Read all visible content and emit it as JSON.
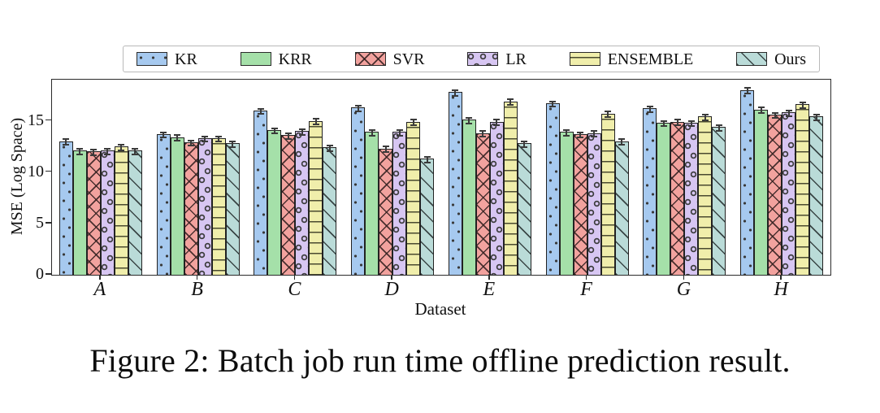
{
  "figure": {
    "caption": "Figure 2: Batch job run time offline prediction result."
  },
  "chart_data": {
    "type": "bar",
    "title": "",
    "xlabel": "Dataset",
    "ylabel": "MSE (Log Space)",
    "categories": [
      "A",
      "B",
      "C",
      "D",
      "E",
      "F",
      "G",
      "H"
    ],
    "category_label_style": "calligraphic-italic",
    "ylim": [
      0,
      19
    ],
    "yticks": [
      0,
      5,
      10,
      15
    ],
    "grid": false,
    "legend_position": "top-outside",
    "error_bar_half_height": 0.35,
    "series": [
      {
        "name": "KR",
        "color": "#a6c9ef",
        "hatch": "dots",
        "values": [
          13.0,
          13.7,
          16.0,
          16.3,
          17.8,
          16.7,
          16.2,
          18.0
        ]
      },
      {
        "name": "KRR",
        "color": "#a5e0a9",
        "hatch": "none",
        "values": [
          12.1,
          13.4,
          14.1,
          13.9,
          15.1,
          13.9,
          14.8,
          16.1
        ]
      },
      {
        "name": "SVR",
        "color": "#f2a29e",
        "hatch": "cross",
        "values": [
          12.0,
          12.9,
          13.6,
          12.3,
          13.8,
          13.7,
          14.9,
          15.6
        ]
      },
      {
        "name": "LR",
        "color": "#d7c6f2",
        "hatch": "rings",
        "values": [
          12.1,
          13.3,
          14.0,
          13.9,
          14.9,
          13.8,
          14.8,
          15.8
        ]
      },
      {
        "name": "ENSEMBLE",
        "color": "#f0eeab",
        "hatch": "hlines",
        "values": [
          12.5,
          13.3,
          15.0,
          14.9,
          16.9,
          15.7,
          15.4,
          16.6
        ]
      },
      {
        "name": "Ours",
        "color": "#badbd8",
        "hatch": "diag",
        "values": [
          12.1,
          12.8,
          12.4,
          11.3,
          12.8,
          13.0,
          14.4,
          15.4
        ]
      }
    ]
  }
}
